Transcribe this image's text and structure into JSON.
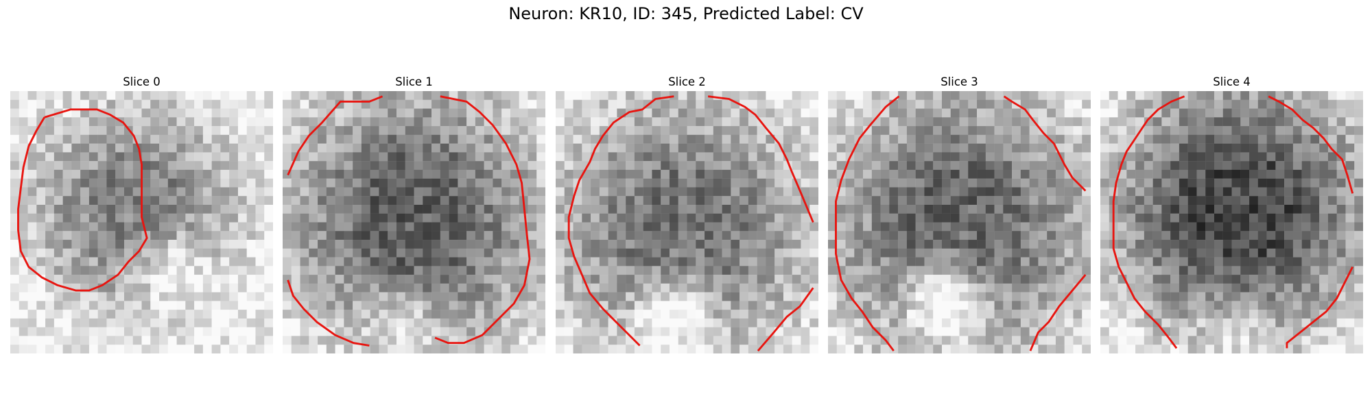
{
  "figure": {
    "suptitle": "Neuron: KR10, ID: 345, Predicted Label: CV"
  },
  "colors": {
    "contour": "#e8140f",
    "background": "#ffffff"
  },
  "colormap": "gray",
  "slices": [
    {
      "title": "Slice 0"
    },
    {
      "title": "Slice 1"
    },
    {
      "title": "Slice 2"
    },
    {
      "title": "Slice 3"
    },
    {
      "title": "Slice 4"
    }
  ]
}
